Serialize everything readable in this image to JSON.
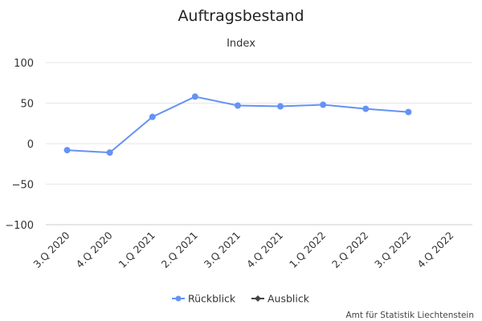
{
  "chart_data": {
    "type": "line",
    "title": "Auftragsbestand",
    "subtitle": "Index",
    "categories": [
      "3.Q 2020",
      "4.Q 2020",
      "1.Q 2021",
      "2.Q 2021",
      "3.Q 2021",
      "4.Q 2021",
      "1.Q 2022",
      "2.Q 2022",
      "3.Q 2022",
      "4.Q 2022"
    ],
    "ylim": [
      -100,
      100
    ],
    "yticks": [
      100,
      50,
      0,
      -50,
      -100
    ],
    "grid": true,
    "legend_position": "bottom-center",
    "series": [
      {
        "name": "Rückblick",
        "color": "#6592f4",
        "marker": "circle",
        "values": [
          -8,
          -11,
          33,
          58,
          47,
          46,
          48,
          43,
          39,
          null
        ]
      },
      {
        "name": "Ausblick",
        "color": "#444444",
        "marker": "diamond",
        "values": [
          null,
          null,
          null,
          null,
          null,
          null,
          null,
          null,
          null,
          null
        ]
      }
    ],
    "credit": "Amt für Statistik Liechtenstein"
  }
}
